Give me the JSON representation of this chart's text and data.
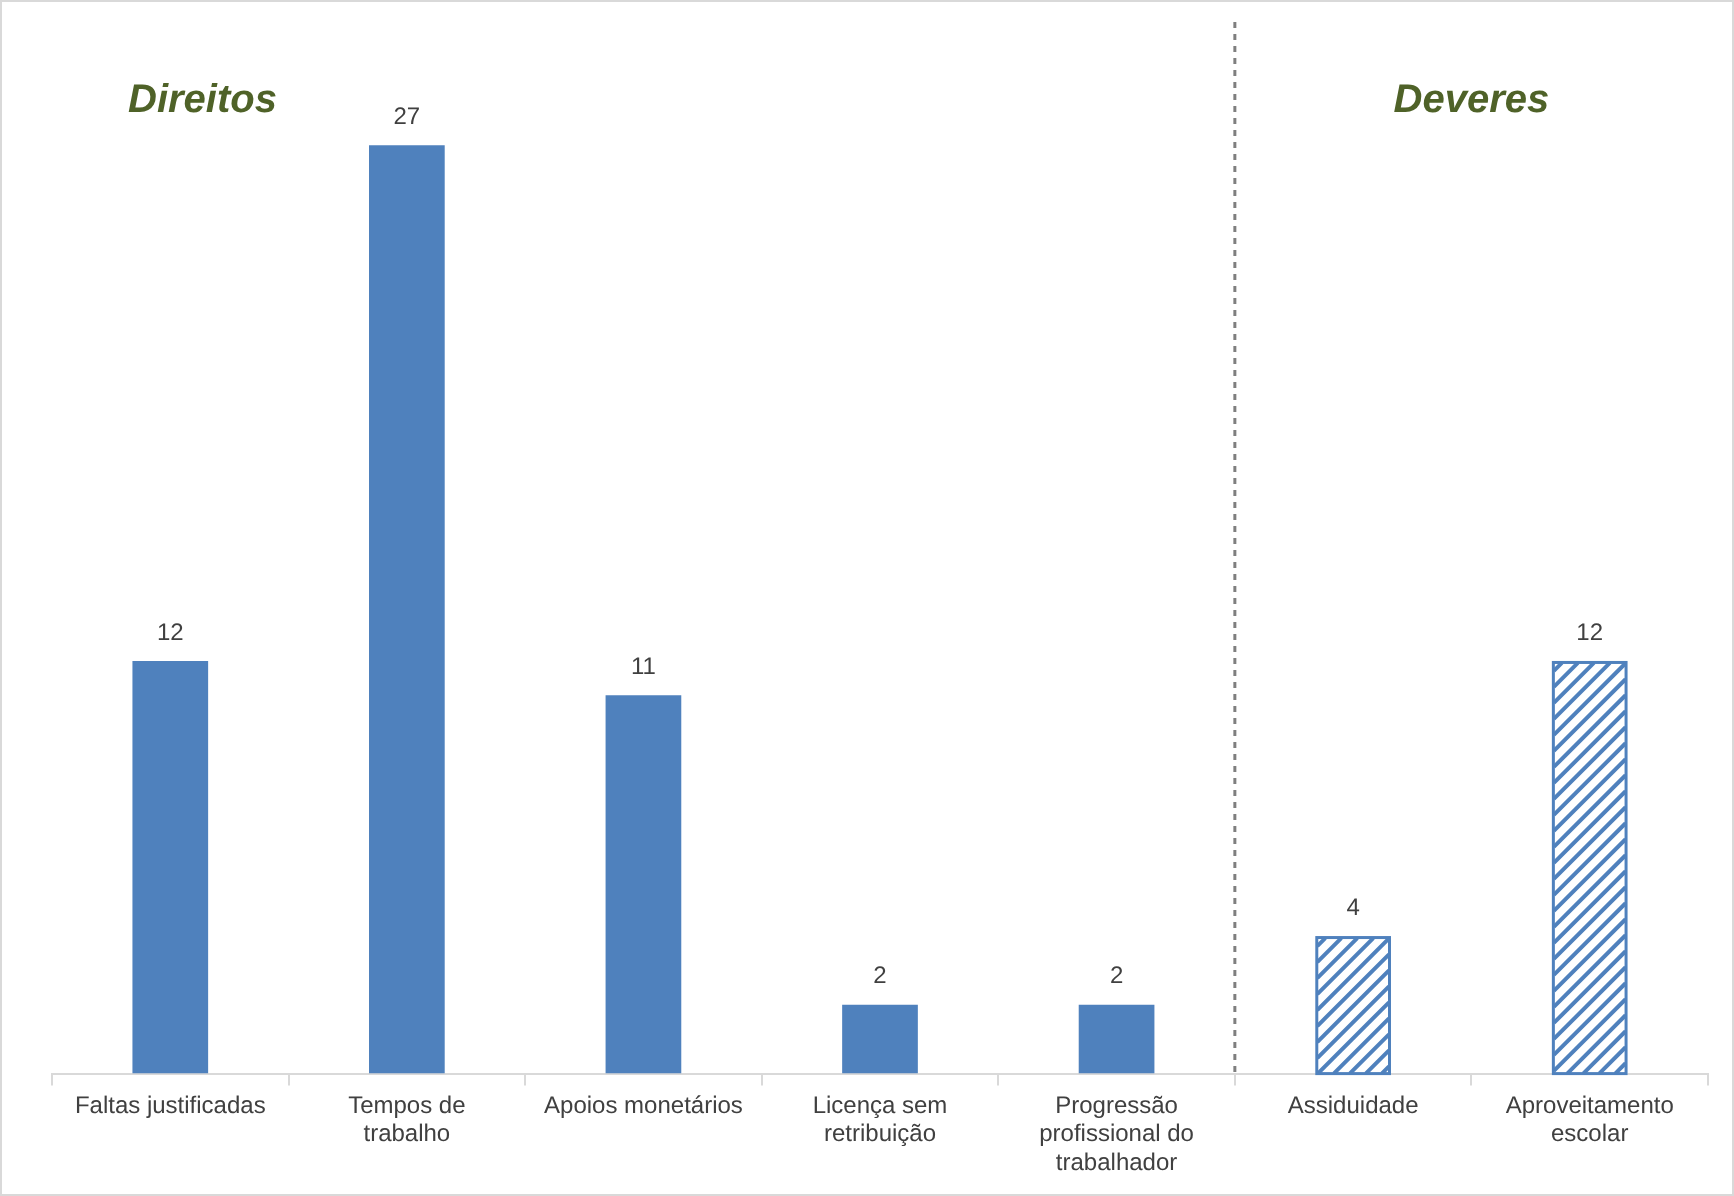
{
  "chart_data": {
    "type": "bar",
    "categories": [
      "Faltas justificadas",
      "Tempos de trabalho",
      "Apoios monetários",
      "Licença sem retribuição",
      "Progressão profissional do trabalhador",
      "Assiduidade",
      "Aproveitamento escolar"
    ],
    "values": [
      12,
      27,
      11,
      2,
      2,
      4,
      12
    ],
    "colors": [
      "#4f81bd",
      "#4f81bd",
      "#4f81bd",
      "#4f81bd",
      "#4f81bd",
      "#ffffff",
      "#ffffff"
    ],
    "data_labels": true,
    "annotations": [
      "Direitos",
      "Deveres"
    ]
  }
}
